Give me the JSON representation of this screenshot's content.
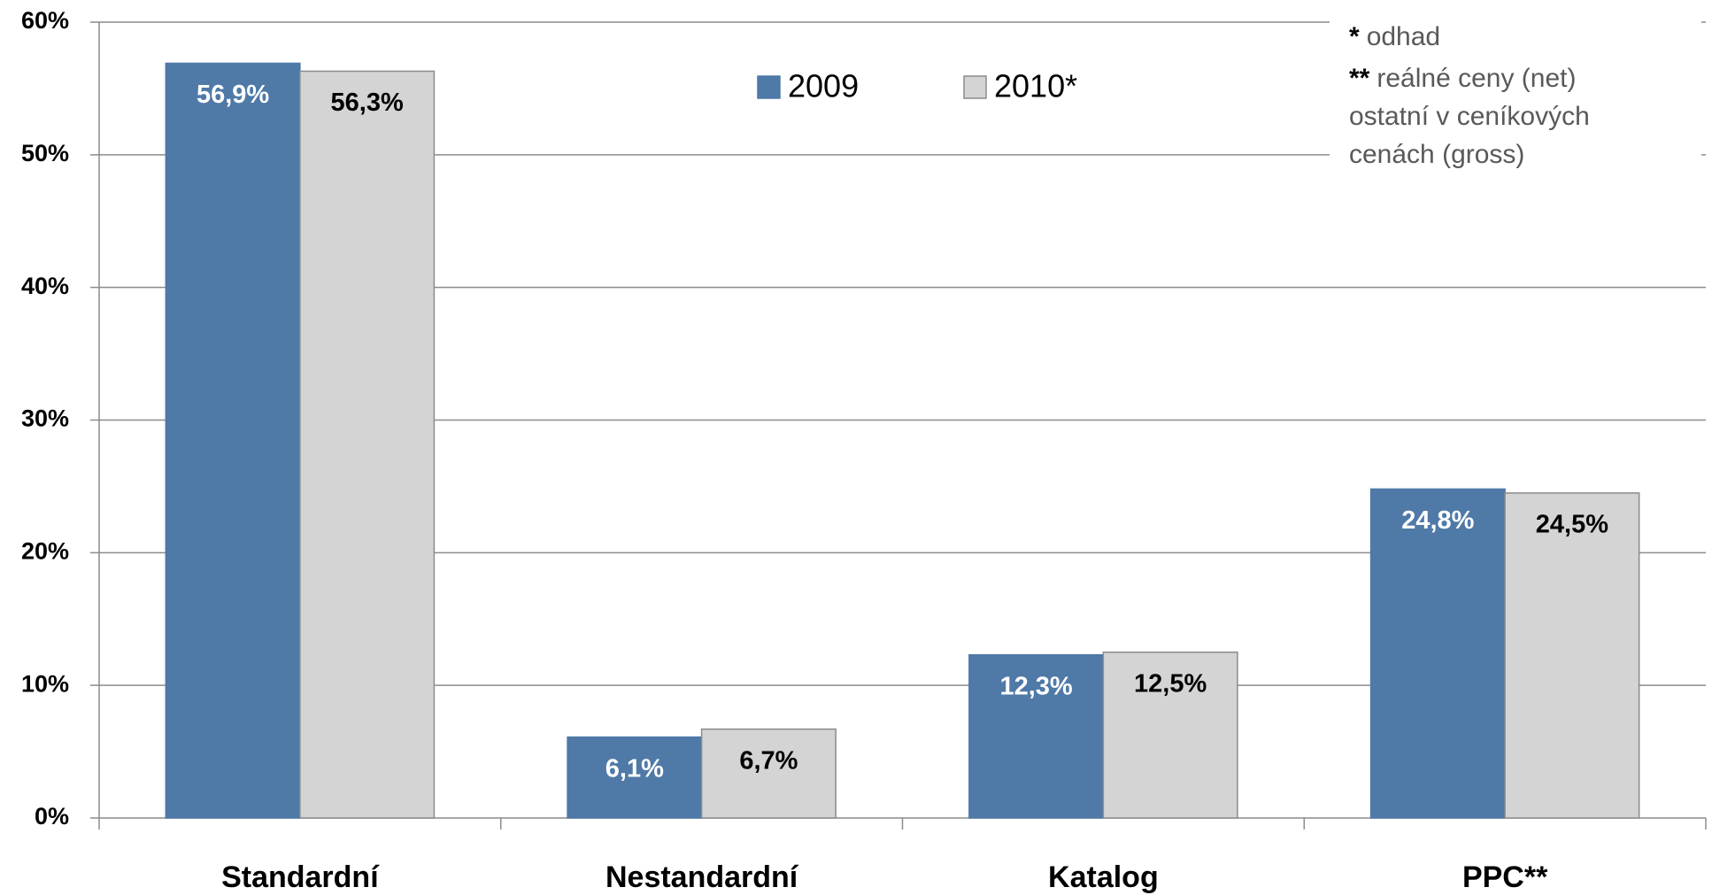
{
  "chart_data": {
    "type": "bar",
    "categories": [
      "Standardní",
      "Nestandardní",
      "Katalog",
      "PPC**"
    ],
    "series": [
      {
        "name": "2009",
        "color": "#4f79a7",
        "values": [
          56.9,
          6.1,
          12.3,
          24.8
        ],
        "value_labels": [
          "56,9%",
          "6,1%",
          "12,3%",
          "24,8%"
        ]
      },
      {
        "name": "2010*",
        "color": "#d4d4d4",
        "values": [
          56.3,
          6.7,
          12.5,
          24.5
        ],
        "value_labels": [
          "56,3%",
          "6,7%",
          "12,5%",
          "24,5%"
        ]
      }
    ],
    "ylim": [
      0,
      60
    ],
    "yticks": [
      {
        "value": 0,
        "label": "0%"
      },
      {
        "value": 10,
        "label": "10%"
      },
      {
        "value": 20,
        "label": "20%"
      },
      {
        "value": 30,
        "label": "30%"
      },
      {
        "value": 40,
        "label": "40%"
      },
      {
        "value": 50,
        "label": "50%"
      },
      {
        "value": 60,
        "label": "60%"
      }
    ],
    "grid": true,
    "notes": [
      {
        "mark": "*",
        "text": "odhad"
      },
      {
        "mark": "**",
        "text": "reálné ceny (net)"
      },
      {
        "text": "ostatní v ceníkových"
      },
      {
        "text": "cenách (gross)"
      }
    ]
  }
}
